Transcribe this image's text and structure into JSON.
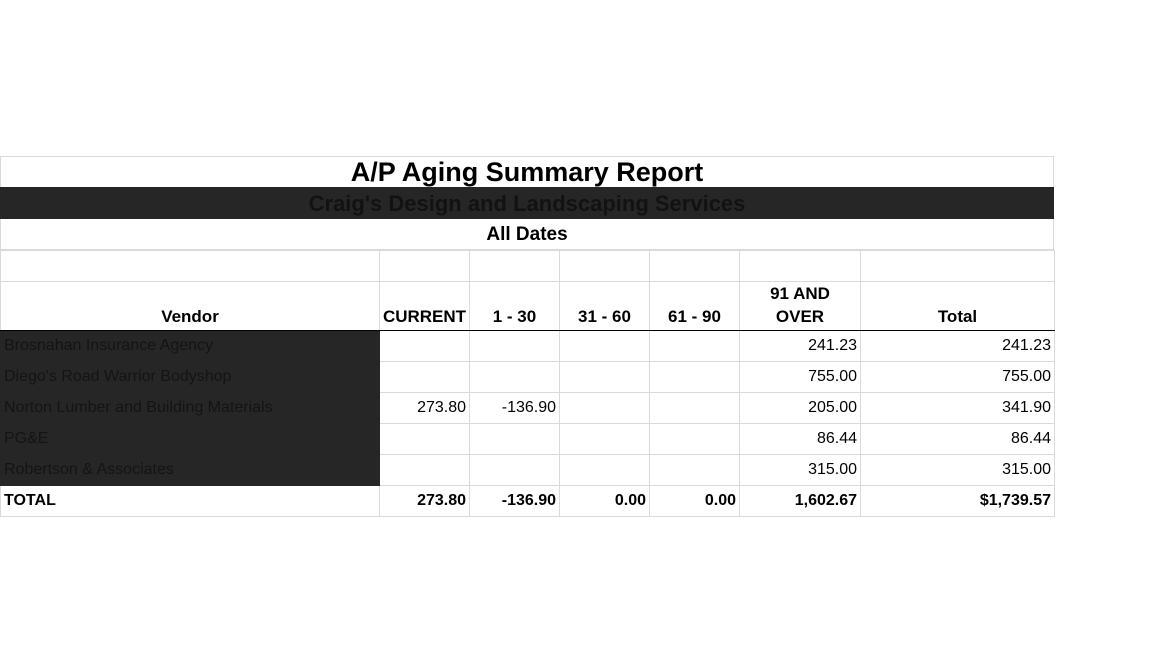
{
  "report": {
    "title": "A/P Aging Summary Report",
    "company": "Craig's Design and Landscaping Services",
    "date_range": "All Dates"
  },
  "table": {
    "columns": [
      "Vendor",
      "CURRENT",
      "1 - 30",
      "31 - 60",
      "61 - 90",
      "91 AND OVER",
      "Total"
    ],
    "rows": [
      {
        "vendor": "Brosnahan Insurance Agency",
        "current": "",
        "d1_30": "",
        "d31_60": "",
        "d61_90": "",
        "d91_over": "241.23",
        "total": "241.23"
      },
      {
        "vendor": "Diego's Road Warrior Bodyshop",
        "current": "",
        "d1_30": "",
        "d31_60": "",
        "d61_90": "",
        "d91_over": "755.00",
        "total": "755.00"
      },
      {
        "vendor": "Norton Lumber and Building Materials",
        "current": "273.80",
        "d1_30": "-136.90",
        "d31_60": "",
        "d61_90": "",
        "d91_over": "205.00",
        "total": "341.90"
      },
      {
        "vendor": "PG&E",
        "current": "",
        "d1_30": "",
        "d31_60": "",
        "d61_90": "",
        "d91_over": "86.44",
        "total": "86.44"
      },
      {
        "vendor": "Robertson & Associates",
        "current": "",
        "d1_30": "",
        "d31_60": "",
        "d61_90": "",
        "d91_over": "315.00",
        "total": "315.00"
      }
    ],
    "totals": {
      "label": "TOTAL",
      "current": "273.80",
      "d1_30": "-136.90",
      "d31_60": "0.00",
      "d61_90": "0.00",
      "d91_over": "1,602.67",
      "total": "$1,739.57"
    }
  }
}
